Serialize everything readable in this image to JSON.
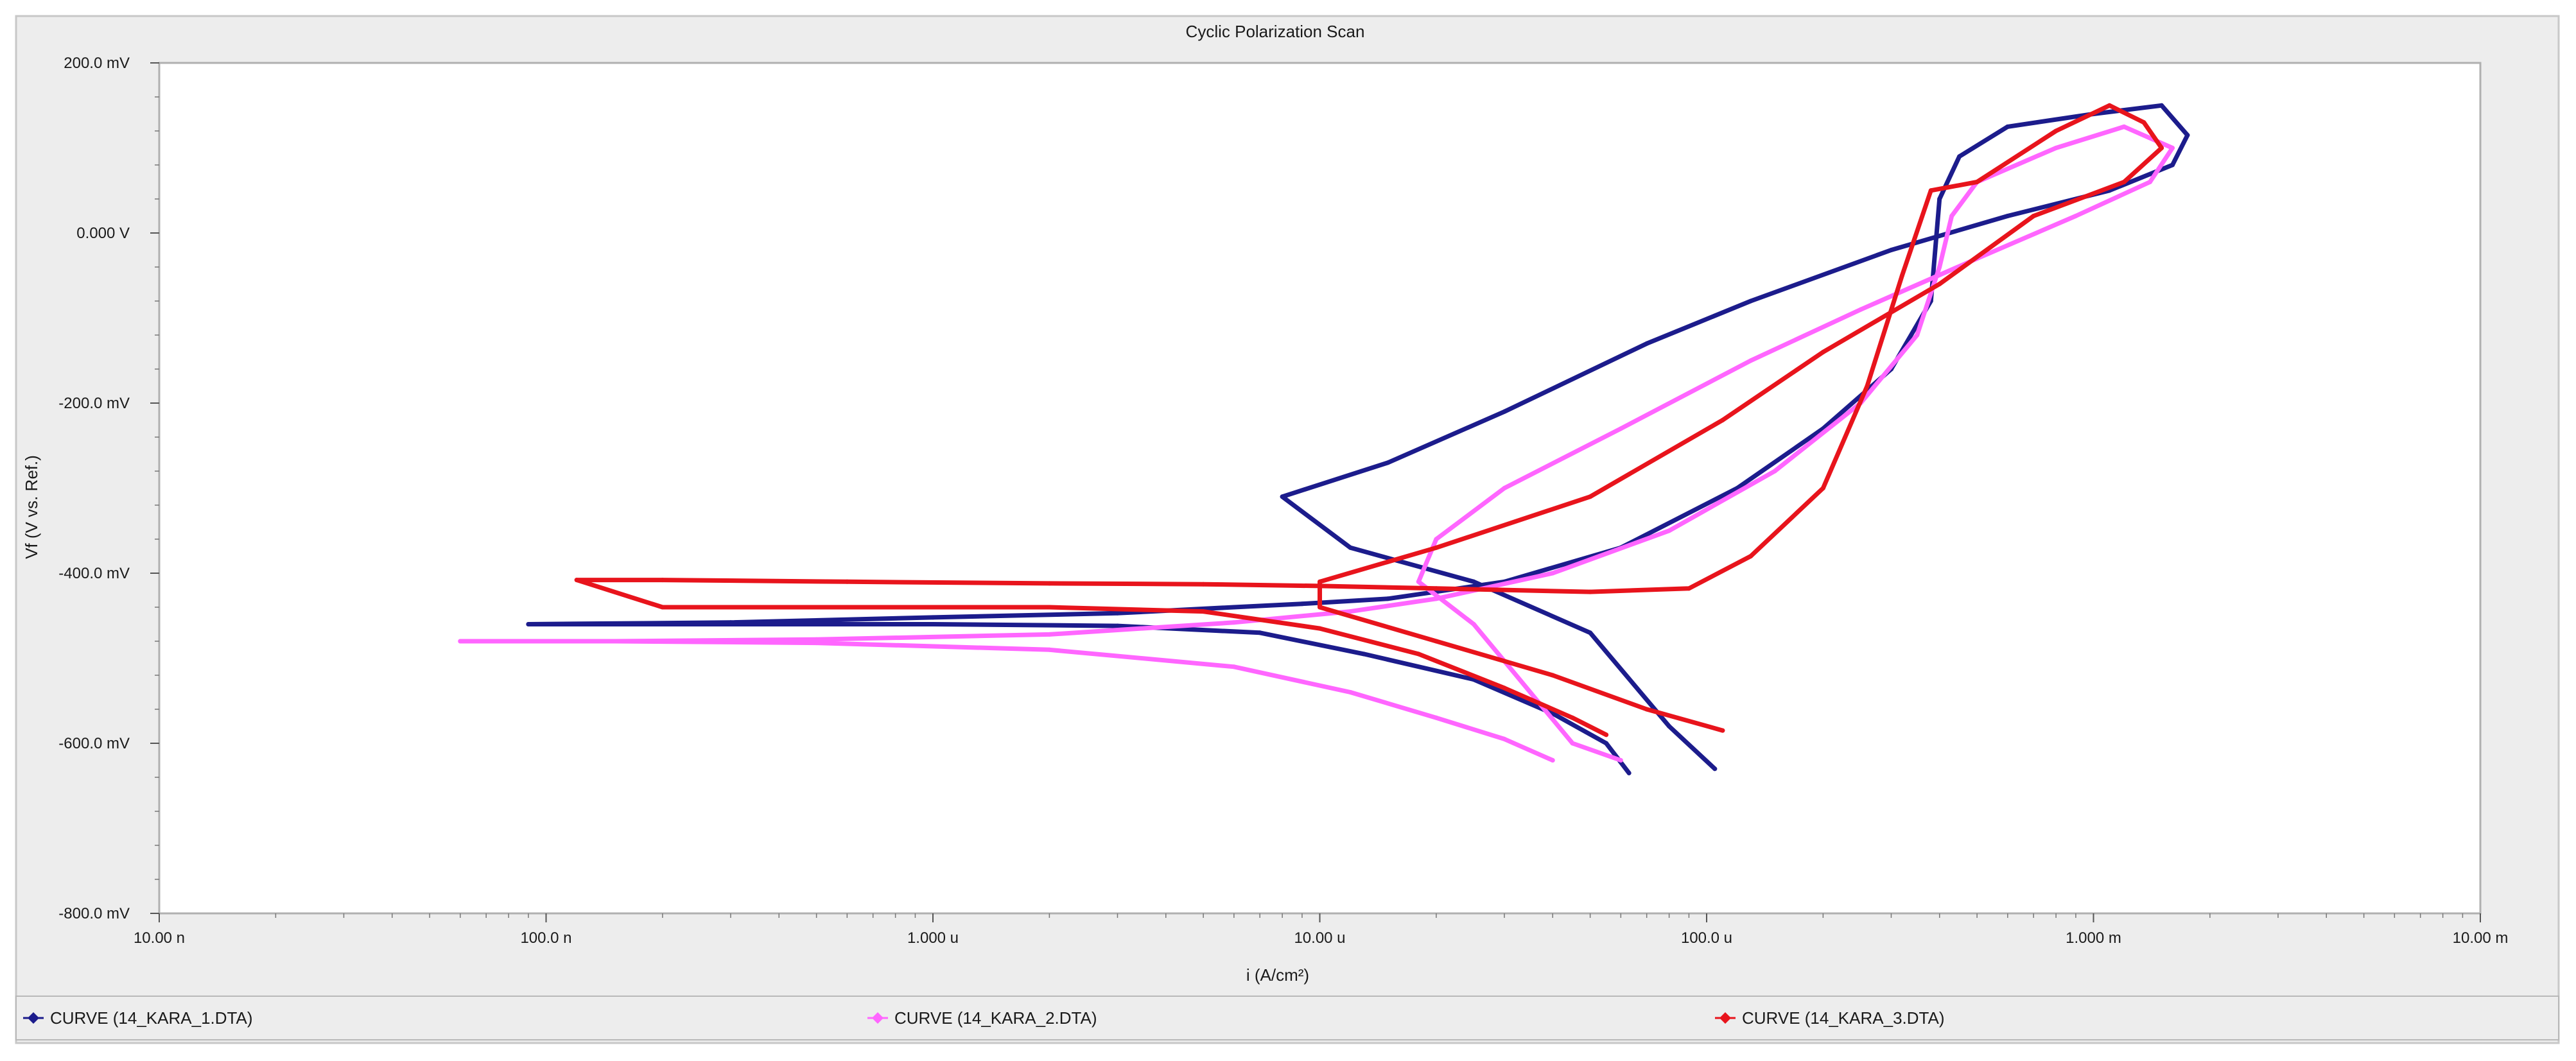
{
  "chart_data": {
    "type": "line",
    "title": "Cyclic Polarization Scan",
    "xlabel": "i (A/cm²)",
    "ylabel": "Vf (V vs. Ref.)",
    "xscale": "log",
    "xlim": [
      1e-08,
      0.01
    ],
    "ylim": [
      -800,
      200
    ],
    "x_ticks": [
      {
        "value": 1e-08,
        "label": "10.00 n"
      },
      {
        "value": 1e-07,
        "label": "100.0 n"
      },
      {
        "value": 1e-06,
        "label": "1.000 u"
      },
      {
        "value": 1e-05,
        "label": "10.00 u"
      },
      {
        "value": 0.0001,
        "label": "100.0 u"
      },
      {
        "value": 0.001,
        "label": "1.000 m"
      },
      {
        "value": 0.01,
        "label": "10.00 m"
      }
    ],
    "y_ticks": [
      {
        "value": 200,
        "label": "200.0 mV"
      },
      {
        "value": 0,
        "label": "0.000 V"
      },
      {
        "value": -200,
        "label": "-200.0 mV"
      },
      {
        "value": -400,
        "label": "-400.0 mV"
      },
      {
        "value": -600,
        "label": "-600.0 mV"
      },
      {
        "value": -800,
        "label": "-800.0 mV"
      }
    ],
    "legend_position": "bottom",
    "grid": false,
    "series": [
      {
        "name": "CURVE (14_KARA_1.DTA)",
        "color": "#1c1c8c",
        "x": [
          6.3e-05,
          5.5e-05,
          4e-05,
          2.5e-05,
          1.3e-05,
          7e-06,
          3e-06,
          1e-06,
          3e-07,
          9e-08,
          3e-07,
          1e-06,
          3e-06,
          6e-06,
          9e-06,
          1.5e-05,
          3e-05,
          6e-05,
          0.00012,
          0.0002,
          0.0003,
          0.00038,
          0.0004,
          0.00045,
          0.0006,
          0.001,
          0.0015,
          0.00175,
          0.0016,
          0.0011,
          0.0006,
          0.0003,
          0.00013,
          7e-05,
          3e-05,
          1.5e-05,
          8e-06,
          1.2e-05,
          2.5e-05,
          5e-05,
          8e-05,
          0.000105
        ],
        "y": [
          -635,
          -600,
          -565,
          -525,
          -495,
          -470,
          -462,
          -460,
          -460,
          -460,
          -458,
          -452,
          -447,
          -440,
          -436,
          -430,
          -410,
          -370,
          -300,
          -230,
          -160,
          -80,
          40,
          90,
          125,
          140,
          150,
          115,
          80,
          50,
          20,
          -20,
          -80,
          -130,
          -210,
          -270,
          -310,
          -370,
          -410,
          -470,
          -580,
          -630
        ]
      },
      {
        "name": "CURVE (14_KARA_2.DTA)",
        "color": "#ff66ff",
        "x": [
          4e-05,
          3e-05,
          2e-05,
          1.2e-05,
          6e-06,
          2e-06,
          5e-07,
          1.5e-07,
          6e-08,
          1.5e-07,
          5e-07,
          2e-06,
          6e-06,
          1.2e-05,
          2e-05,
          4e-05,
          8e-05,
          0.00015,
          0.00025,
          0.00035,
          0.0004,
          0.00043,
          0.0005,
          0.0008,
          0.0012,
          0.0016,
          0.0014,
          0.0009,
          0.0005,
          0.00025,
          0.00013,
          6e-05,
          3e-05,
          2e-05,
          1.8e-05,
          2.5e-05,
          3.5e-05,
          4.5e-05,
          6e-05
        ],
        "y": [
          -620,
          -595,
          -570,
          -540,
          -510,
          -490,
          -482,
          -480,
          -480,
          -480,
          -478,
          -472,
          -458,
          -445,
          -430,
          -400,
          -350,
          -280,
          -200,
          -120,
          -40,
          20,
          60,
          100,
          125,
          100,
          60,
          20,
          -30,
          -90,
          -150,
          -230,
          -300,
          -360,
          -410,
          -460,
          -540,
          -600,
          -620
        ]
      },
      {
        "name": "CURVE (14_KARA_3.DTA)",
        "color": "#e8141c",
        "x": [
          5.5e-05,
          4.5e-05,
          3e-05,
          1.8e-05,
          1e-05,
          5e-06,
          2e-06,
          6e-07,
          2e-07,
          1.2e-07,
          2e-07,
          6e-07,
          2e-06,
          5e-06,
          1e-05,
          2e-05,
          5e-05,
          9e-05,
          0.00013,
          0.0002,
          0.00026,
          0.00032,
          0.00038,
          0.0005,
          0.0008,
          0.0011,
          0.00135,
          0.0015,
          0.0012,
          0.0007,
          0.0004,
          0.0002,
          0.00011,
          5e-05,
          2e-05,
          1e-05,
          1e-05,
          2e-05,
          4e-05,
          7e-05,
          0.00011
        ],
        "y": [
          -590,
          -570,
          -535,
          -495,
          -465,
          -445,
          -440,
          -440,
          -440,
          -408,
          -408,
          -410,
          -412,
          -413,
          -415,
          -418,
          -422,
          -418,
          -380,
          -300,
          -180,
          -50,
          50,
          60,
          120,
          150,
          130,
          100,
          60,
          20,
          -60,
          -140,
          -220,
          -310,
          -370,
          -410,
          -440,
          -480,
          -520,
          -560,
          -585
        ]
      }
    ]
  }
}
